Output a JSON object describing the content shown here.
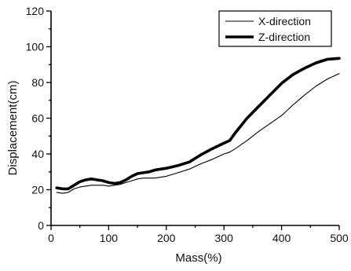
{
  "chart_data": {
    "type": "line",
    "xlabel": "Mass(%)",
    "ylabel": "Displacement(cm)",
    "xlim": [
      0,
      500
    ],
    "ylim": [
      0,
      120
    ],
    "xticks": [
      0,
      100,
      200,
      300,
      400,
      500
    ],
    "yticks": [
      0,
      20,
      40,
      60,
      80,
      100,
      120
    ],
    "grid": false,
    "legend_position": "top-right",
    "series": [
      {
        "name": "X-direction",
        "line_width": "thin",
        "color": "#000000",
        "x": [
          10,
          20,
          30,
          40,
          50,
          60,
          70,
          80,
          90,
          100,
          110,
          120,
          130,
          140,
          150,
          160,
          170,
          180,
          190,
          200,
          220,
          240,
          260,
          280,
          300,
          310,
          320,
          340,
          360,
          380,
          400,
          420,
          440,
          460,
          480,
          500
        ],
        "y": [
          18.5,
          18,
          18.5,
          20.5,
          21.5,
          22,
          22.5,
          22.5,
          22.5,
          22,
          22.5,
          23,
          24,
          25,
          26,
          26.5,
          26.5,
          26.5,
          27,
          27.5,
          29.5,
          31.5,
          34.5,
          37,
          40,
          41,
          43,
          47.5,
          52.5,
          57,
          61.5,
          67.5,
          73,
          78,
          82,
          85
        ]
      },
      {
        "name": "Z-direction",
        "line_width": "thick",
        "color": "#000000",
        "x": [
          10,
          20,
          30,
          40,
          50,
          60,
          70,
          80,
          90,
          100,
          110,
          120,
          130,
          140,
          150,
          160,
          170,
          180,
          190,
          200,
          220,
          240,
          260,
          280,
          300,
          310,
          320,
          340,
          360,
          380,
          400,
          420,
          440,
          460,
          480,
          500
        ],
        "y": [
          21,
          20.5,
          20.5,
          22.5,
          24.5,
          25.5,
          26,
          25.5,
          25,
          24,
          23.5,
          24,
          25.5,
          27.5,
          29,
          29.5,
          30,
          31,
          31.5,
          32,
          33.5,
          35.5,
          39.5,
          43,
          46,
          47.5,
          52,
          60,
          66.5,
          73,
          79.5,
          84.5,
          88,
          91,
          93,
          93.5
        ]
      }
    ]
  }
}
